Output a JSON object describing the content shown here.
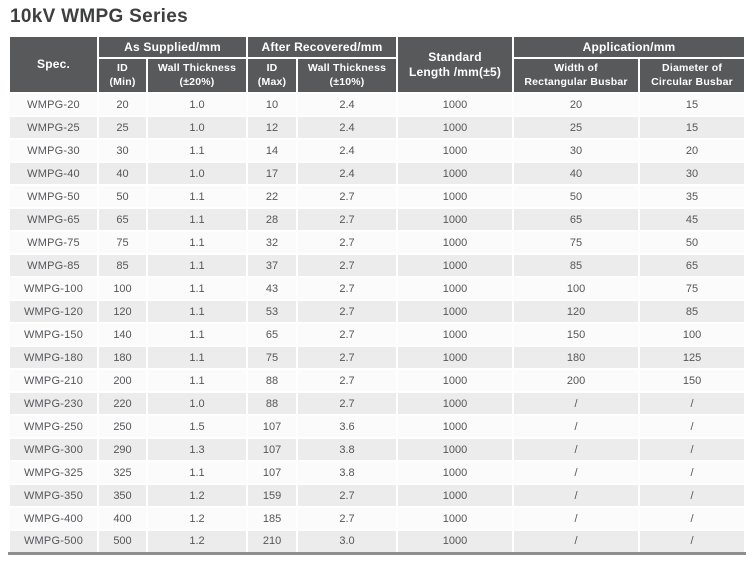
{
  "title": "10kV WMPG Series",
  "colors": {
    "header_bg": "#58595b",
    "header_fg": "#ffffff",
    "row_odd": "#fbfbfb",
    "row_even": "#ececec",
    "text": "#55565a",
    "title": "#3e3f41",
    "bottom_border": "#8f8f8f"
  },
  "table": {
    "header": {
      "spec": "Spec.",
      "as_supplied": "As Supplied/mm",
      "after_recovered": "After Recovered/mm",
      "standard_length": "Standard\nLength /mm(±5)",
      "application": "Application/mm",
      "id_min": "ID\n(Min)",
      "wall_20": "Wall Thickness\n(±20%)",
      "id_max": "ID\n(Max)",
      "wall_10": "Wall Thickness\n(±10%)",
      "width_rect": "Width of\nRectangular Busbar",
      "diam_circ": "Diameter of\nCircular Busbar"
    },
    "rows": [
      [
        "WMPG-20",
        "20",
        "1.0",
        "10",
        "2.4",
        "1000",
        "20",
        "15"
      ],
      [
        "WMPG-25",
        "25",
        "1.0",
        "12",
        "2.4",
        "1000",
        "25",
        "15"
      ],
      [
        "WMPG-30",
        "30",
        "1.1",
        "14",
        "2.4",
        "1000",
        "30",
        "20"
      ],
      [
        "WMPG-40",
        "40",
        "1.0",
        "17",
        "2.4",
        "1000",
        "40",
        "30"
      ],
      [
        "WMPG-50",
        "50",
        "1.1",
        "22",
        "2.7",
        "1000",
        "50",
        "35"
      ],
      [
        "WMPG-65",
        "65",
        "1.1",
        "28",
        "2.7",
        "1000",
        "65",
        "45"
      ],
      [
        "WMPG-75",
        "75",
        "1.1",
        "32",
        "2.7",
        "1000",
        "75",
        "50"
      ],
      [
        "WMPG-85",
        "85",
        "1.1",
        "37",
        "2.7",
        "1000",
        "85",
        "65"
      ],
      [
        "WMPG-100",
        "100",
        "1.1",
        "43",
        "2.7",
        "1000",
        "100",
        "75"
      ],
      [
        "WMPG-120",
        "120",
        "1.1",
        "53",
        "2.7",
        "1000",
        "120",
        "85"
      ],
      [
        "WMPG-150",
        "140",
        "1.1",
        "65",
        "2.7",
        "1000",
        "150",
        "100"
      ],
      [
        "WMPG-180",
        "180",
        "1.1",
        "75",
        "2.7",
        "1000",
        "180",
        "125"
      ],
      [
        "WMPG-210",
        "200",
        "1.1",
        "88",
        "2.7",
        "1000",
        "200",
        "150"
      ],
      [
        "WMPG-230",
        "220",
        "1.0",
        "88",
        "2.7",
        "1000",
        "/",
        "/"
      ],
      [
        "WMPG-250",
        "250",
        "1.5",
        "107",
        "3.6",
        "1000",
        "/",
        "/"
      ],
      [
        "WMPG-300",
        "290",
        "1.3",
        "107",
        "3.8",
        "1000",
        "/",
        "/"
      ],
      [
        "WMPG-325",
        "325",
        "1.1",
        "107",
        "3.8",
        "1000",
        "/",
        "/"
      ],
      [
        "WMPG-350",
        "350",
        "1.2",
        "159",
        "2.7",
        "1000",
        "/",
        "/"
      ],
      [
        "WMPG-400",
        "400",
        "1.2",
        "185",
        "2.7",
        "1000",
        "/",
        "/"
      ],
      [
        "WMPG-500",
        "500",
        "1.2",
        "210",
        "3.0",
        "1000",
        "/",
        "/"
      ]
    ]
  }
}
